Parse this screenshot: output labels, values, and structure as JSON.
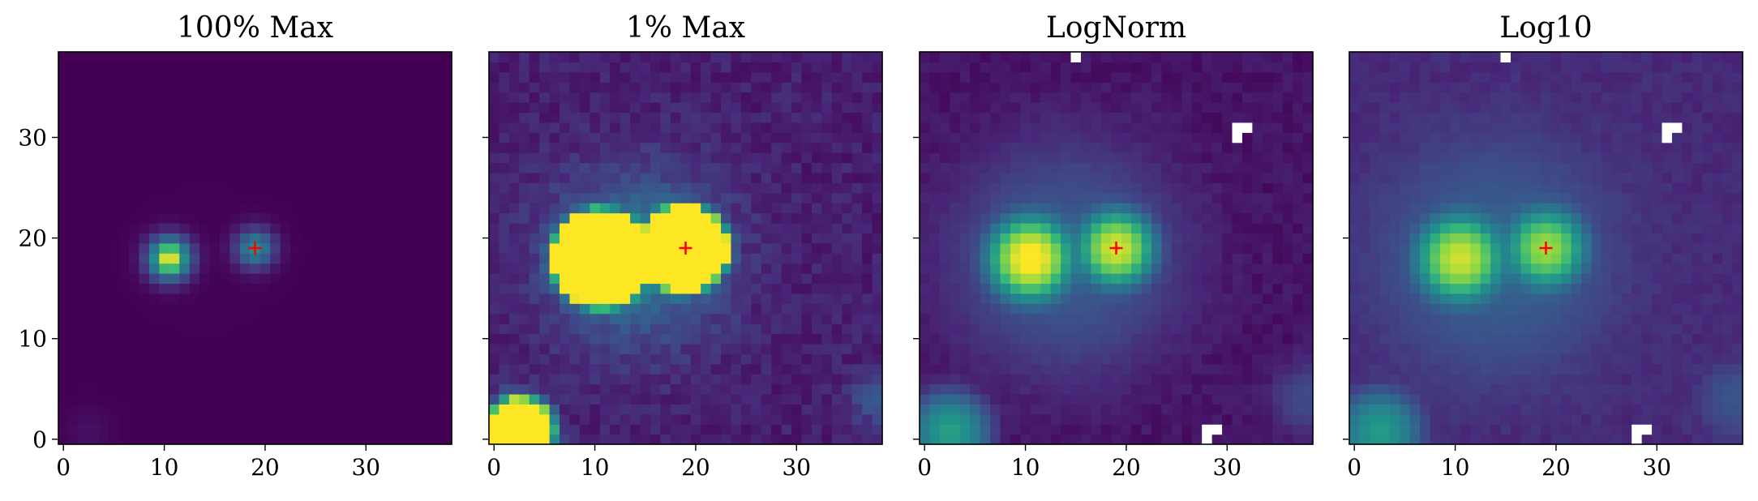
{
  "chart_data": [
    {
      "type": "heatmap",
      "title": "100% Max",
      "normalization": "linear, clipped at 100% of max",
      "colormap": "viridis",
      "grid_size": [
        39,
        39
      ],
      "xlim": [
        -0.5,
        38.5
      ],
      "ylim": [
        -0.5,
        38.5
      ],
      "xticks": [
        0,
        10,
        20,
        30
      ],
      "yticks": [
        0,
        10,
        20,
        30
      ],
      "ytick_labels_shown": true,
      "marker": {
        "symbol": "+",
        "color": "#ff0000",
        "x": 19,
        "y": 19
      },
      "sources": [
        {
          "x": 10.5,
          "y": 18,
          "level": 0.9
        },
        {
          "x": 19,
          "y": 19,
          "level": 0.55
        },
        {
          "x": 2.5,
          "y": 0.5,
          "level": 0.05
        }
      ],
      "missing_pixels": []
    },
    {
      "type": "heatmap",
      "title": "1% Max",
      "normalization": "linear, clipped at 1% of max",
      "colormap": "viridis",
      "grid_size": [
        39,
        39
      ],
      "xlim": [
        -0.5,
        38.5
      ],
      "ylim": [
        -0.5,
        38.5
      ],
      "xticks": [
        0,
        10,
        20,
        30
      ],
      "yticks": [
        0,
        10,
        20,
        30
      ],
      "ytick_labels_shown": false,
      "marker": {
        "symbol": "+",
        "color": "#ff0000",
        "x": 19,
        "y": 19
      },
      "sources": [
        {
          "x": 10.5,
          "y": 18,
          "level": 1.0
        },
        {
          "x": 19,
          "y": 19,
          "level": 1.0
        },
        {
          "x": 2.5,
          "y": 0.5,
          "level": 1.0
        }
      ],
      "missing_pixels": []
    },
    {
      "type": "heatmap",
      "title": "LogNorm",
      "normalization": "log",
      "colormap": "viridis",
      "grid_size": [
        39,
        39
      ],
      "xlim": [
        -0.5,
        38.5
      ],
      "ylim": [
        -0.5,
        38.5
      ],
      "xticks": [
        0,
        10,
        20,
        30
      ],
      "yticks": [
        0,
        10,
        20,
        30
      ],
      "ytick_labels_shown": false,
      "marker": {
        "symbol": "+",
        "color": "#ff0000",
        "x": 19,
        "y": 19
      },
      "sources": [
        {
          "x": 10.5,
          "y": 18,
          "level": 0.95
        },
        {
          "x": 19,
          "y": 19,
          "level": 0.9
        },
        {
          "x": 2.5,
          "y": 0.5,
          "level": 0.8
        }
      ],
      "missing_pixels": [
        [
          15,
          38
        ],
        [
          31,
          30
        ],
        [
          31,
          31
        ],
        [
          32,
          31
        ],
        [
          28,
          0
        ],
        [
          28,
          1
        ],
        [
          29,
          1
        ]
      ]
    },
    {
      "type": "heatmap",
      "title": "Log10",
      "normalization": "log10",
      "colormap": "viridis",
      "grid_size": [
        39,
        39
      ],
      "xlim": [
        -0.5,
        38.5
      ],
      "ylim": [
        -0.5,
        38.5
      ],
      "xticks": [
        0,
        10,
        20,
        30
      ],
      "yticks": [
        0,
        10,
        20,
        30
      ],
      "ytick_labels_shown": false,
      "marker": {
        "symbol": "+",
        "color": "#ff0000",
        "x": 19,
        "y": 19
      },
      "sources": [
        {
          "x": 10.5,
          "y": 18,
          "level": 0.92
        },
        {
          "x": 19,
          "y": 19,
          "level": 0.88
        },
        {
          "x": 2.5,
          "y": 0.5,
          "level": 0.55
        }
      ],
      "missing_pixels": [
        [
          15,
          38
        ],
        [
          31,
          30
        ],
        [
          31,
          31
        ],
        [
          32,
          31
        ],
        [
          28,
          0
        ],
        [
          28,
          1
        ],
        [
          29,
          1
        ]
      ]
    }
  ]
}
